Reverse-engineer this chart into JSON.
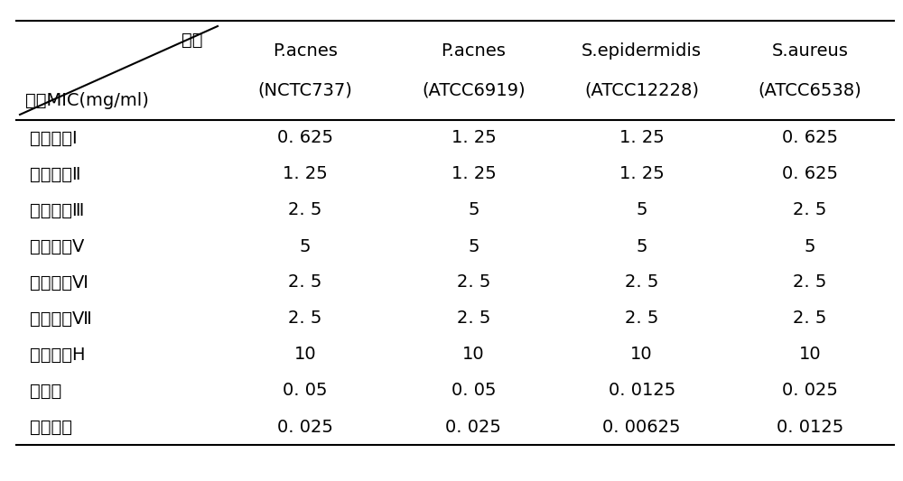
{
  "col_headers_line1": [
    "P.acnes",
    "P.acnes",
    "S.epidermidis",
    "S.aureus"
  ],
  "col_headers_line2": [
    "(NCTC737)",
    "(ATCC6919)",
    "(ATCC12228)",
    "(ATCC6538)"
  ],
  "row_labels": [
    "重楼皮苷Ⅰ",
    "重楼皮苷Ⅱ",
    "重楼皮苷Ⅲ",
    "重楼皮苷Ⅴ",
    "重楼皮苷Ⅵ",
    "重楼皮苷Ⅶ",
    "重楼皮苷H",
    "红霉素",
    "克林霉素"
  ],
  "data": [
    [
      "0. 625",
      "1. 25",
      "1. 25",
      "0. 625"
    ],
    [
      "1. 25",
      "1. 25",
      "1. 25",
      "0. 625"
    ],
    [
      "2. 5",
      "5",
      "5",
      "2. 5"
    ],
    [
      "5",
      "5",
      "5",
      "5"
    ],
    [
      "2. 5",
      "2. 5",
      "2. 5",
      "2. 5"
    ],
    [
      "2. 5",
      "2. 5",
      "2. 5",
      "2. 5"
    ],
    [
      "10",
      "10",
      "10",
      "10"
    ],
    [
      "0. 05",
      "0. 05",
      "0. 0125",
      "0. 025"
    ],
    [
      "0. 025",
      "0. 025",
      "0. 00625",
      "0. 0125"
    ]
  ],
  "header_top_right": "菌株",
  "header_bottom_left": "药品MIC(mg/ml)",
  "bg_color": "#ffffff",
  "text_color": "#000000",
  "font_size": 14,
  "header_font_size": 14,
  "line_width": 1.5
}
